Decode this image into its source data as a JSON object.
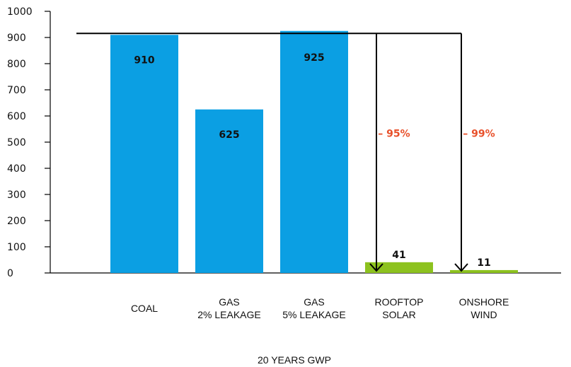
{
  "chart_data": {
    "type": "bar",
    "categories": [
      [
        "COAL"
      ],
      [
        "GAS",
        "2% LEAKAGE"
      ],
      [
        "GAS",
        "5% LEAKAGE"
      ],
      [
        "ROOFTOP",
        "SOLAR"
      ],
      [
        "ONSHORE",
        "WIND"
      ]
    ],
    "values": [
      910,
      625,
      925,
      41,
      11
    ],
    "value_labels": [
      "910",
      "625",
      "925",
      "41",
      "11"
    ],
    "bar_colors": [
      "#0b9fe3",
      "#0b9fe3",
      "#0b9fe3",
      "#8dc21f",
      "#8dc21f"
    ],
    "ylim": [
      0,
      1000
    ],
    "yticks": [
      0,
      100,
      200,
      300,
      400,
      500,
      600,
      700,
      800,
      900,
      1000
    ],
    "xlabel": "20 YEARS GWP",
    "grid": false,
    "reference_line": {
      "value": 910
    },
    "reductions": [
      {
        "target_index": 3,
        "label": "– 95%"
      },
      {
        "target_index": 4,
        "label": "– 99%"
      }
    ],
    "reduction_color": "#e8502a",
    "axis_color": "#000000"
  }
}
